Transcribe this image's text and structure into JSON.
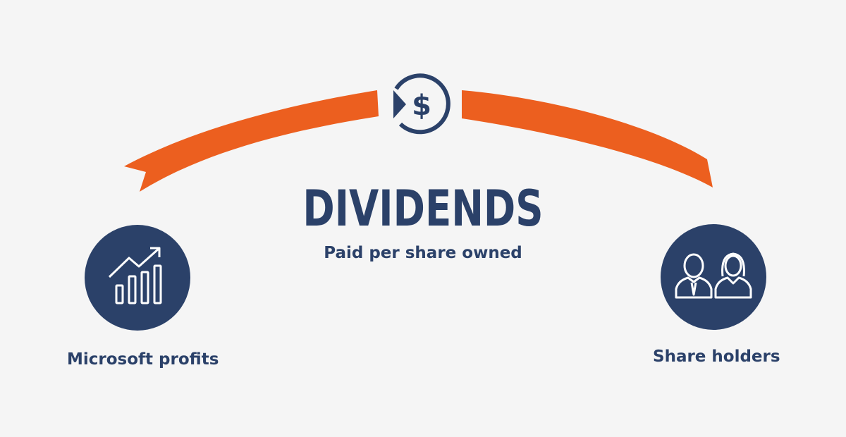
{
  "title": "DIVIDENDS",
  "subtitle": "Paid per share owned",
  "left_node": {
    "label": "Microsoft profits",
    "icon": "bar-chart-growth-icon"
  },
  "right_node": {
    "label": "Share holders",
    "icon": "people-icon"
  },
  "center_icon": {
    "glyph": "$",
    "icon": "dollar-cycle-icon"
  },
  "colors": {
    "navy": "#2b4169",
    "orange": "#ec5f1f",
    "background": "#f5f5f5"
  }
}
